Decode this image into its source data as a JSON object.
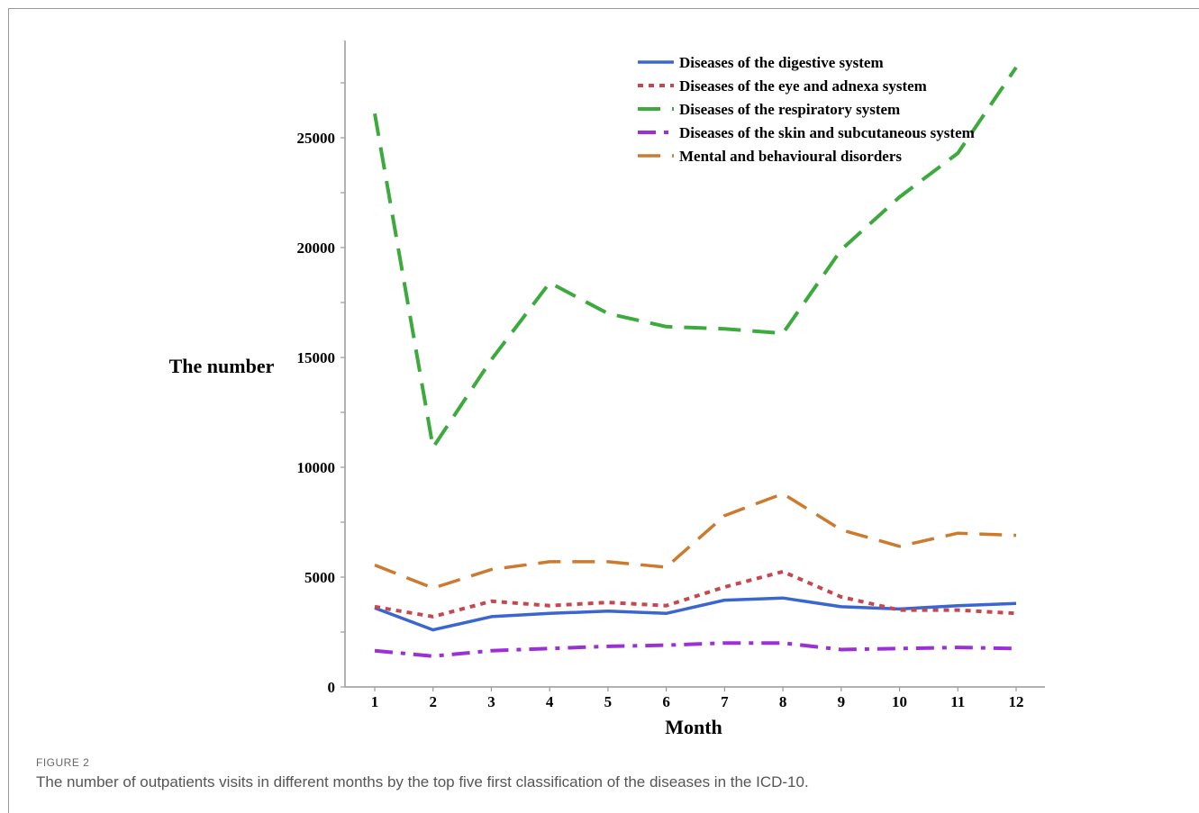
{
  "caption": {
    "label": "FIGURE 2",
    "text": "The number of outpatients visits in different months by the top five first classification of the diseases in the ICD-10."
  },
  "chart_data": {
    "type": "line",
    "title": "",
    "xlabel": "Month",
    "ylabel": "The number",
    "x": [
      1,
      2,
      3,
      4,
      5,
      6,
      7,
      8,
      9,
      10,
      11,
      12
    ],
    "xticks": [
      "1",
      "2",
      "3",
      "4",
      "5",
      "6",
      "7",
      "8",
      "9",
      "10",
      "11",
      "12"
    ],
    "yticks": [
      "0",
      "5000",
      "10000",
      "15000",
      "20000",
      "25000"
    ],
    "ylim": [
      0,
      29000
    ],
    "grid": false,
    "legend_position": "top-right",
    "series": [
      {
        "name": "Diseases of the digestive system",
        "color": "#3b66d1",
        "style": "solid",
        "values": [
          3600,
          2600,
          3200,
          3350,
          3450,
          3350,
          3950,
          4050,
          3650,
          3550,
          3700,
          3800
        ]
      },
      {
        "name": "Diseases of the eye and adnexa system",
        "color": "#c6474f",
        "style": "dotted",
        "values": [
          3650,
          3200,
          3900,
          3700,
          3850,
          3700,
          4550,
          5250,
          4100,
          3500,
          3500,
          3350
        ]
      },
      {
        "name": "Diseases of the respiratory system",
        "color": "#3daa3d",
        "style": "dashed",
        "values": [
          26100,
          10900,
          14900,
          18400,
          17000,
          16400,
          16300,
          16100,
          19900,
          22300,
          24300,
          28200
        ]
      },
      {
        "name": "Diseases of the skin and subcutaneous system",
        "color": "#9b30d6",
        "style": "dashdot",
        "values": [
          1650,
          1400,
          1650,
          1750,
          1850,
          1900,
          2000,
          2000,
          1700,
          1750,
          1800,
          1750
        ]
      },
      {
        "name": "Mental and behavioural disorders",
        "color": "#cc7a2e",
        "style": "longdash",
        "values": [
          5550,
          4500,
          5350,
          5700,
          5700,
          5450,
          7800,
          8800,
          7150,
          6400,
          7000,
          6900
        ]
      }
    ]
  }
}
